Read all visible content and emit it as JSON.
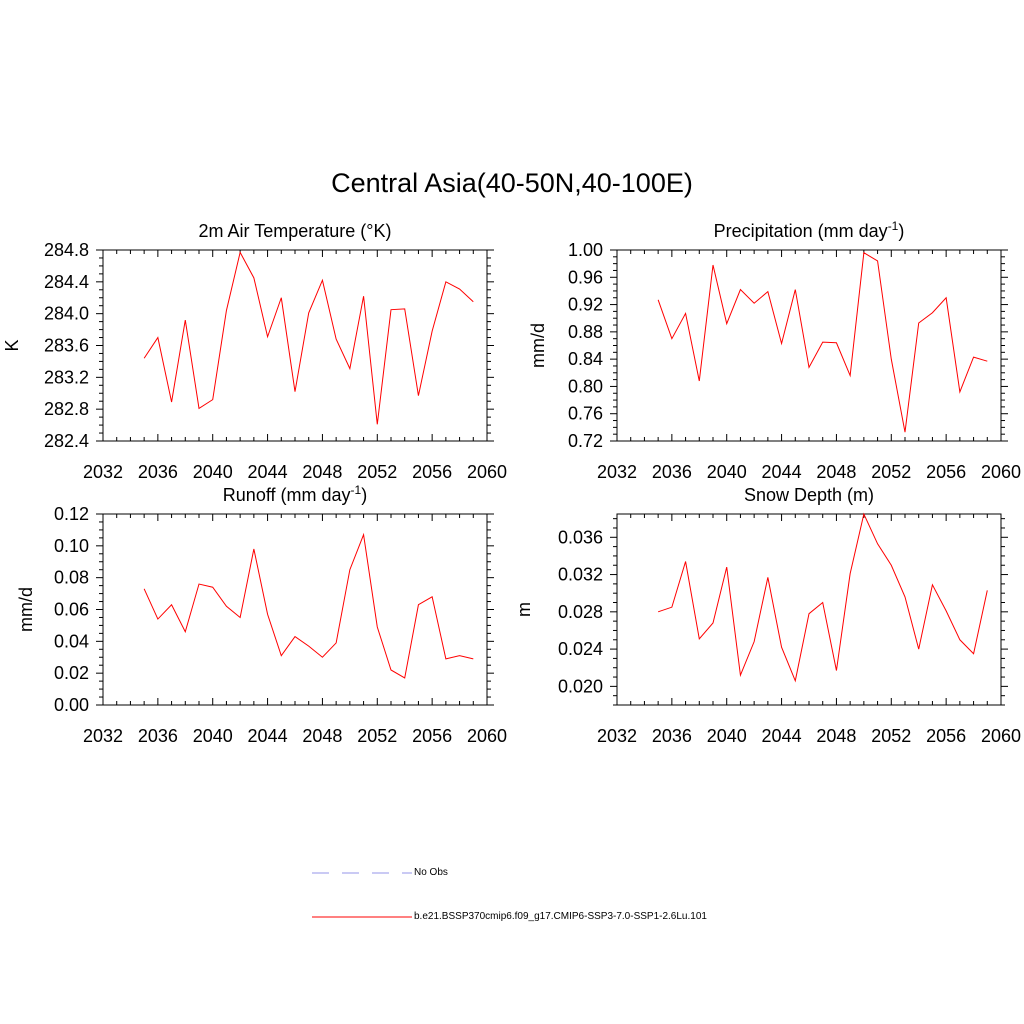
{
  "title": "Central Asia(40-50N,40-100E)",
  "chart_data": [
    {
      "type": "line",
      "title": "2m Air Temperature (°K)",
      "ylabel": "K",
      "xlim": [
        2032,
        2060
      ],
      "ylim": [
        282.4,
        284.8
      ],
      "x_ticks": [
        "2032",
        "2036",
        "2040",
        "2044",
        "2048",
        "2052",
        "2056",
        "2060"
      ],
      "y_ticks": [
        "282.4",
        "282.8",
        "283.2",
        "283.6",
        "284.0",
        "284.4",
        "284.8"
      ],
      "series": [
        {
          "color": "#ff0000",
          "x": [
            2035,
            2036,
            2037,
            2038,
            2039,
            2040,
            2041,
            2042,
            2043,
            2044,
            2045,
            2046,
            2047,
            2048,
            2049,
            2050,
            2051,
            2052,
            2053,
            2054,
            2055,
            2056,
            2057,
            2058,
            2059
          ],
          "values": [
            283.44,
            283.7,
            282.89,
            283.92,
            282.81,
            282.92,
            284.04,
            284.77,
            284.45,
            283.71,
            284.2,
            283.02,
            284.01,
            284.42,
            283.68,
            283.31,
            284.22,
            282.61,
            284.05,
            284.06,
            282.97,
            283.78,
            284.4,
            284.31,
            284.15
          ]
        }
      ]
    },
    {
      "type": "line",
      "title": "Precipitation (mm day",
      "title_sup": "-1",
      "title_end": ")",
      "ylabel": "mm/d",
      "xlim": [
        2032,
        2060
      ],
      "ylim": [
        0.72,
        1.0
      ],
      "x_ticks": [
        "2032",
        "2036",
        "2040",
        "2044",
        "2048",
        "2052",
        "2056",
        "2060"
      ],
      "y_ticks": [
        "0.72",
        "0.76",
        "0.80",
        "0.84",
        "0.88",
        "0.92",
        "0.96",
        "1.00"
      ],
      "series": [
        {
          "color": "#ff0000",
          "x": [
            2035,
            2036,
            2037,
            2038,
            2039,
            2040,
            2041,
            2042,
            2043,
            2044,
            2045,
            2046,
            2047,
            2048,
            2049,
            2050,
            2051,
            2052,
            2053,
            2054,
            2055,
            2056,
            2057,
            2058,
            2059
          ],
          "values": [
            0.927,
            0.87,
            0.907,
            0.808,
            0.978,
            0.892,
            0.942,
            0.922,
            0.939,
            0.863,
            0.942,
            0.828,
            0.865,
            0.864,
            0.816,
            0.996,
            0.984,
            0.84,
            0.733,
            0.893,
            0.908,
            0.93,
            0.792,
            0.843,
            0.837
          ]
        }
      ]
    },
    {
      "type": "line",
      "title": "Runoff (mm day",
      "title_sup": "-1",
      "title_end": ")",
      "ylabel": "mm/d",
      "xlim": [
        2032,
        2060
      ],
      "ylim": [
        0.0,
        0.12
      ],
      "x_ticks": [
        "2032",
        "2036",
        "2040",
        "2044",
        "2048",
        "2052",
        "2056",
        "2060"
      ],
      "y_ticks": [
        "0.00",
        "0.02",
        "0.04",
        "0.06",
        "0.08",
        "0.10",
        "0.12"
      ],
      "series": [
        {
          "color": "#ff0000",
          "x": [
            2035,
            2036,
            2037,
            2038,
            2039,
            2040,
            2041,
            2042,
            2043,
            2044,
            2045,
            2046,
            2047,
            2048,
            2049,
            2050,
            2051,
            2052,
            2053,
            2054,
            2055,
            2056,
            2057,
            2058,
            2059
          ],
          "values": [
            0.073,
            0.054,
            0.063,
            0.046,
            0.076,
            0.074,
            0.062,
            0.055,
            0.098,
            0.057,
            0.031,
            0.043,
            0.037,
            0.03,
            0.039,
            0.085,
            0.107,
            0.049,
            0.022,
            0.017,
            0.063,
            0.068,
            0.029,
            0.031,
            0.029
          ]
        }
      ]
    },
    {
      "type": "line",
      "title": "Snow Depth (m)",
      "ylabel": "m",
      "xlim": [
        2032,
        2060
      ],
      "ylim": [
        0.018,
        0.0385
      ],
      "x_ticks": [
        "2032",
        "2036",
        "2040",
        "2044",
        "2048",
        "2052",
        "2056",
        "2060"
      ],
      "y_ticks": [
        "0.020",
        "0.024",
        "0.028",
        "0.032",
        "0.036"
      ],
      "y_tick_values": [
        0.02,
        0.024,
        0.028,
        0.032,
        0.036
      ],
      "series": [
        {
          "color": "#ff0000",
          "x": [
            2035,
            2036,
            2037,
            2038,
            2039,
            2040,
            2041,
            2042,
            2043,
            2044,
            2045,
            2046,
            2047,
            2048,
            2049,
            2050,
            2051,
            2052,
            2053,
            2054,
            2055,
            2056,
            2057,
            2058,
            2059
          ],
          "values": [
            0.028,
            0.0285,
            0.0334,
            0.0251,
            0.0268,
            0.0328,
            0.0212,
            0.0248,
            0.0317,
            0.0242,
            0.0206,
            0.0278,
            0.029,
            0.0217,
            0.0321,
            0.0385,
            0.0353,
            0.033,
            0.0296,
            0.024,
            0.0309,
            0.0281,
            0.025,
            0.0235,
            0.0303
          ]
        }
      ]
    }
  ],
  "legend": [
    {
      "label": "No Obs",
      "color": "#aaaaee",
      "style": "dashed"
    },
    {
      "label": "b.e21.BSSP370cmip6.f09_g17.CMIP6-SSP3-7.0-SSP1-2.6Lu.101",
      "color": "#ff0000",
      "style": "solid"
    }
  ]
}
